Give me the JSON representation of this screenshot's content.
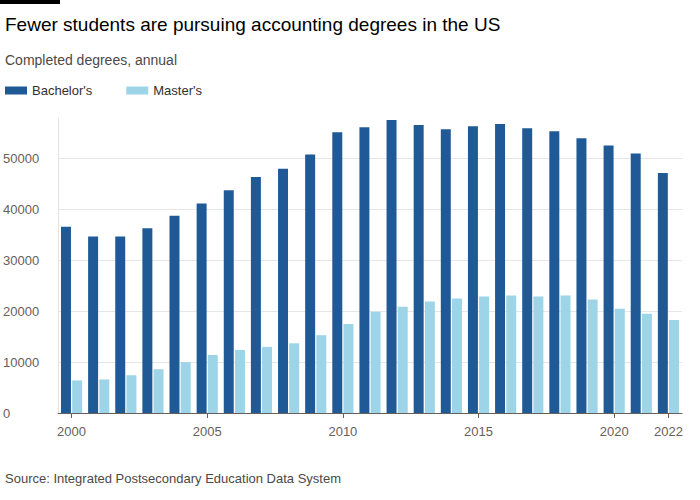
{
  "chart_data": {
    "type": "bar",
    "title": "Fewer students are pursuing accounting degrees in the US",
    "subtitle": "Completed degrees, annual",
    "source": "Source: Integrated Postsecondary Education Data System",
    "categories": [
      "2000",
      null,
      null,
      null,
      null,
      "2005",
      null,
      null,
      null,
      null,
      "2010",
      null,
      null,
      null,
      null,
      "2015",
      null,
      null,
      null,
      null,
      "2020",
      null,
      "2022"
    ],
    "series": [
      {
        "name": "Bachelor's",
        "color": "#1f5a96",
        "values": [
          36600,
          34700,
          34700,
          36300,
          38800,
          41200,
          43800,
          46400,
          48000,
          50800,
          55200,
          56200,
          57600,
          56600,
          55800,
          56400,
          56800,
          56000,
          55400,
          54000,
          52600,
          51000,
          47200
        ]
      },
      {
        "name": "Master's",
        "color": "#9dd4e8",
        "values": [
          6400,
          6600,
          7400,
          8600,
          10000,
          11400,
          12400,
          13000,
          13700,
          15300,
          17500,
          19900,
          20900,
          21900,
          22500,
          22900,
          23100,
          22900,
          23100,
          22300,
          20500,
          19500,
          18300
        ]
      }
    ],
    "ylim": [
      0,
      58000
    ],
    "yticks": [
      0,
      10000,
      20000,
      30000,
      40000,
      50000
    ],
    "grid": true,
    "legend": "top-left"
  }
}
